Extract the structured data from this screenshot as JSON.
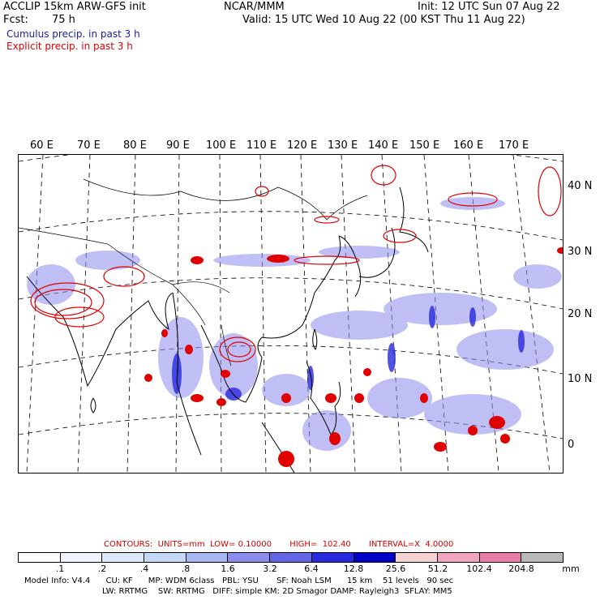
{
  "header": {
    "model_line": "ACCLIP 15km ARW-GFS init",
    "center": "NCAR/MMM",
    "init": "Init: 12 UTC Sun 07 Aug 22",
    "fcst_label": "Fcst:",
    "fcst_value": "75 h",
    "valid": "Valid: 15 UTC Wed 10 Aug 22 (00 KST Thu 11 Aug 22)",
    "field1": "Cumulus precip. in past 3 h",
    "field2": "Explicit precip. in past 3 h",
    "field1_color": "#1a1aa6",
    "field2_color": "#e00000"
  },
  "axes": {
    "lon_labels": [
      "60 E",
      "70 E",
      "80 E",
      "90 E",
      "100 E",
      "110 E",
      "120 E",
      "130 E",
      "140 E",
      "150 E",
      "160 E",
      "170 E"
    ],
    "lat_labels": [
      "40 N",
      "30 N",
      "20 N",
      "10 N",
      "0"
    ]
  },
  "contours": {
    "text": "CONTOURS:  UNITS=mm  LOW= 0.10000       HIGH=  102.40       INTERVAL=X  4.0000"
  },
  "colorbar": {
    "colors": [
      "#ffffff",
      "#f0f4ff",
      "#dde8fb",
      "#c6d8f7",
      "#a9b8f2",
      "#8c8cee",
      "#6464e6",
      "#2828dc",
      "#0000c8",
      "#f7d2d2",
      "#f2a6bd",
      "#e87da8",
      "#b8b8b8",
      "#808080",
      "#383838",
      "#d8b4f7"
    ],
    "labels": [
      ".1",
      ".2",
      ".4",
      ".8",
      "1.6",
      "3.2",
      "6.4",
      "12.8",
      "25.6",
      "51.2",
      "102.4",
      "204.8"
    ],
    "unit": "mm"
  },
  "model_info": {
    "line1": "Model Info: V4.4      CU: KF      MP: WDM 6class   PBL: YSU       SF: Noah LSM      15 km    51 levels   90 sec",
    "line2": "LW: RRTMG    SW: RRTMG   DIFF: simple KM: 2D Smagor DAMP: Rayleigh3  SFLAY: MM5"
  },
  "map_icons": [
    "coastline",
    "country-borders",
    "lat-lon-grid",
    "convective-precip-shading",
    "explicit-precip-contours"
  ]
}
